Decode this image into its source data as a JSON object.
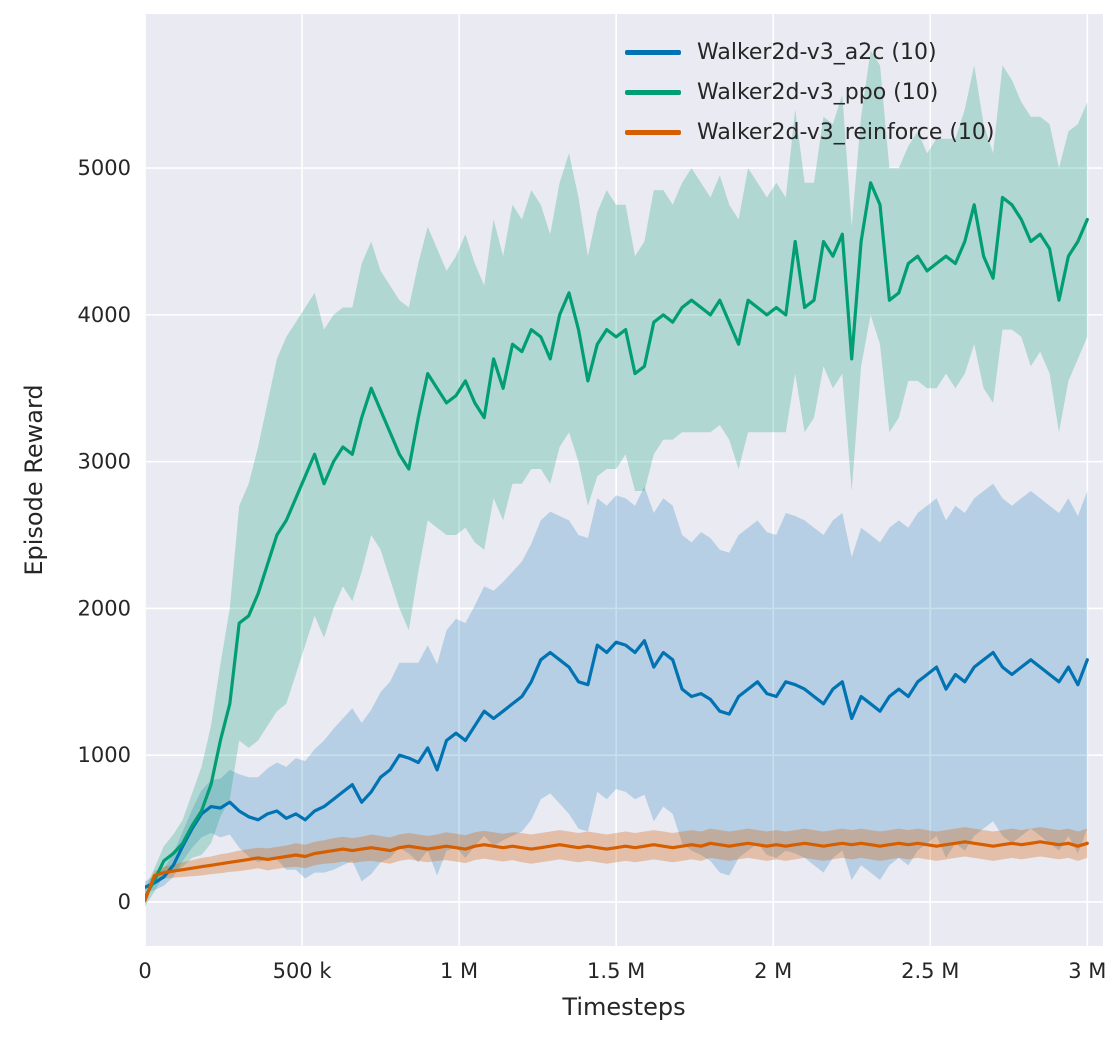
{
  "figure": {
    "background": "#ffffff",
    "plot_background": "#eaeaf2",
    "grid_color": "#ffffff",
    "text_color": "#262626"
  },
  "chart_data": {
    "type": "line",
    "title": "",
    "xlabel": "Timesteps",
    "ylabel": "Episode Reward",
    "grid": true,
    "legend_position": "upper right",
    "xlim": [
      0,
      3050000
    ],
    "ylim": [
      -300,
      6050
    ],
    "x_ticks": [
      {
        "value": 0,
        "label": "0"
      },
      {
        "value": 500000,
        "label": "500 k"
      },
      {
        "value": 1000000,
        "label": "1 M"
      },
      {
        "value": 1500000,
        "label": "1.5 M"
      },
      {
        "value": 2000000,
        "label": "2 M"
      },
      {
        "value": 2500000,
        "label": "2.5 M"
      },
      {
        "value": 3000000,
        "label": "3 M"
      }
    ],
    "y_ticks": [
      {
        "value": 0,
        "label": "0"
      },
      {
        "value": 1000,
        "label": "1000"
      },
      {
        "value": 2000,
        "label": "2000"
      },
      {
        "value": 3000,
        "label": "3000"
      },
      {
        "value": 4000,
        "label": "4000"
      },
      {
        "value": 5000,
        "label": "5000"
      }
    ],
    "x_unit_multiplier": 1000,
    "x": [
      0,
      30,
      60,
      90,
      120,
      150,
      180,
      210,
      240,
      270,
      300,
      330,
      360,
      390,
      420,
      450,
      480,
      510,
      540,
      570,
      600,
      630,
      660,
      690,
      720,
      750,
      780,
      810,
      840,
      870,
      900,
      930,
      960,
      990,
      1020,
      1050,
      1080,
      1110,
      1140,
      1170,
      1200,
      1230,
      1260,
      1290,
      1320,
      1350,
      1380,
      1410,
      1440,
      1470,
      1500,
      1530,
      1560,
      1590,
      1620,
      1650,
      1680,
      1710,
      1740,
      1770,
      1800,
      1830,
      1860,
      1890,
      1920,
      1950,
      1980,
      2010,
      2040,
      2070,
      2100,
      2130,
      2160,
      2190,
      2220,
      2250,
      2280,
      2310,
      2340,
      2370,
      2400,
      2430,
      2460,
      2490,
      2520,
      2550,
      2580,
      2610,
      2640,
      2670,
      2700,
      2730,
      2760,
      2790,
      2820,
      2850,
      2880,
      2910,
      2940,
      2970,
      3000
    ],
    "series": [
      {
        "name": "Walker2d-v3_a2c (10)",
        "color": "#0173b2",
        "band_opacity": 0.22,
        "mean": [
          100,
          130,
          170,
          250,
          380,
          500,
          600,
          650,
          640,
          680,
          620,
          580,
          560,
          600,
          620,
          570,
          600,
          560,
          620,
          650,
          700,
          750,
          800,
          680,
          750,
          850,
          900,
          1000,
          980,
          950,
          1050,
          900,
          1100,
          1150,
          1100,
          1200,
          1300,
          1250,
          1300,
          1350,
          1400,
          1500,
          1650,
          1700,
          1650,
          1600,
          1500,
          1480,
          1750,
          1700,
          1770,
          1750,
          1700,
          1780,
          1600,
          1700,
          1650,
          1450,
          1400,
          1420,
          1380,
          1300,
          1280,
          1400,
          1450,
          1500,
          1420,
          1400,
          1500,
          1480,
          1450,
          1400,
          1350,
          1450,
          1500,
          1250,
          1400,
          1350,
          1300,
          1400,
          1450,
          1400,
          1500,
          1550,
          1600,
          1450,
          1550,
          1500,
          1600,
          1650,
          1700,
          1600,
          1550,
          1600,
          1650,
          1600,
          1550,
          1500,
          1600,
          1480,
          1650
        ],
        "std": [
          40,
          50,
          60,
          80,
          100,
          130,
          160,
          180,
          200,
          220,
          250,
          270,
          290,
          310,
          330,
          350,
          380,
          400,
          420,
          450,
          480,
          500,
          520,
          540,
          560,
          580,
          600,
          630,
          650,
          680,
          700,
          720,
          750,
          780,
          800,
          820,
          850,
          870,
          880,
          900,
          920,
          940,
          950,
          960,
          980,
          1000,
          1000,
          1000,
          1000,
          1000,
          1000,
          1000,
          1000,
          1050,
          1050,
          1050,
          1050,
          1050,
          1050,
          1100,
          1100,
          1100,
          1100,
          1100,
          1100,
          1100,
          1100,
          1100,
          1150,
          1150,
          1150,
          1150,
          1150,
          1150,
          1150,
          1100,
          1150,
          1150,
          1150,
          1150,
          1150,
          1150,
          1150,
          1150,
          1150,
          1150,
          1150,
          1150,
          1150,
          1150,
          1150,
          1150,
          1150,
          1150,
          1150,
          1150,
          1150,
          1150,
          1150,
          1150,
          1150
        ]
      },
      {
        "name": "Walker2d-v3_ppo (10)",
        "color": "#029e73",
        "band_opacity": 0.25,
        "mean": [
          30,
          150,
          280,
          330,
          400,
          520,
          620,
          800,
          1100,
          1350,
          1900,
          1950,
          2100,
          2300,
          2500,
          2600,
          2750,
          2900,
          3050,
          2850,
          3000,
          3100,
          3050,
          3300,
          3500,
          3350,
          3200,
          3050,
          2950,
          3300,
          3600,
          3500,
          3400,
          3450,
          3550,
          3400,
          3300,
          3700,
          3500,
          3800,
          3750,
          3900,
          3850,
          3700,
          4000,
          4150,
          3900,
          3550,
          3800,
          3900,
          3850,
          3900,
          3600,
          3650,
          3950,
          4000,
          3950,
          4050,
          4100,
          4050,
          4000,
          4100,
          3950,
          3800,
          4100,
          4050,
          4000,
          4050,
          4000,
          4500,
          4050,
          4100,
          4500,
          4400,
          4550,
          3700,
          4500,
          4900,
          4750,
          4100,
          4150,
          4350,
          4400,
          4300,
          4350,
          4400,
          4350,
          4500,
          4750,
          4400,
          4250,
          4800,
          4750,
          4650,
          4500,
          4550,
          4450,
          4100,
          4400,
          4500,
          4650
        ],
        "std": [
          60,
          80,
          100,
          130,
          160,
          220,
          300,
          400,
          520,
          650,
          800,
          900,
          1000,
          1100,
          1200,
          1250,
          1200,
          1150,
          1100,
          1050,
          1000,
          950,
          1000,
          1050,
          1000,
          950,
          1000,
          1050,
          1100,
          1050,
          1000,
          950,
          900,
          950,
          1000,
          950,
          900,
          950,
          900,
          950,
          900,
          950,
          900,
          850,
          900,
          950,
          900,
          850,
          900,
          950,
          900,
          850,
          800,
          850,
          900,
          850,
          800,
          850,
          900,
          850,
          800,
          850,
          800,
          850,
          900,
          850,
          800,
          850,
          800,
          900,
          850,
          800,
          850,
          900,
          950,
          900,
          850,
          900,
          950,
          900,
          850,
          800,
          850,
          800,
          850,
          800,
          850,
          900,
          950,
          900,
          850,
          900,
          850,
          800,
          850,
          800,
          850,
          900,
          850,
          800,
          800
        ]
      },
      {
        "name": "Walker2d-v3_reinforce (10)",
        "color": "#d55e00",
        "band_opacity": 0.3,
        "mean": [
          10,
          180,
          200,
          210,
          220,
          230,
          240,
          250,
          260,
          270,
          280,
          290,
          300,
          290,
          300,
          310,
          320,
          310,
          330,
          340,
          350,
          360,
          350,
          360,
          370,
          360,
          350,
          370,
          380,
          370,
          360,
          370,
          380,
          370,
          360,
          380,
          390,
          380,
          370,
          380,
          370,
          360,
          370,
          380,
          390,
          380,
          370,
          380,
          370,
          360,
          370,
          380,
          370,
          380,
          390,
          380,
          370,
          380,
          390,
          380,
          400,
          390,
          380,
          390,
          400,
          390,
          380,
          390,
          380,
          390,
          400,
          390,
          380,
          390,
          400,
          390,
          400,
          390,
          380,
          390,
          400,
          390,
          400,
          390,
          380,
          390,
          400,
          410,
          400,
          390,
          380,
          390,
          400,
          390,
          400,
          410,
          400,
          390,
          400,
          380,
          400
        ],
        "std": [
          15,
          30,
          40,
          45,
          50,
          55,
          60,
          60,
          65,
          65,
          70,
          70,
          70,
          75,
          75,
          75,
          80,
          80,
          80,
          80,
          85,
          85,
          85,
          85,
          90,
          90,
          90,
          90,
          90,
          90,
          90,
          90,
          95,
          95,
          95,
          95,
          95,
          95,
          95,
          95,
          100,
          100,
          100,
          100,
          100,
          100,
          100,
          100,
          100,
          100,
          100,
          100,
          100,
          100,
          100,
          100,
          100,
          100,
          100,
          100,
          100,
          100,
          100,
          100,
          100,
          100,
          100,
          100,
          100,
          100,
          100,
          100,
          100,
          100,
          100,
          100,
          100,
          100,
          100,
          100,
          100,
          100,
          100,
          100,
          100,
          100,
          100,
          100,
          100,
          100,
          100,
          100,
          100,
          100,
          100,
          100,
          100,
          100,
          100,
          100,
          100
        ]
      }
    ]
  }
}
